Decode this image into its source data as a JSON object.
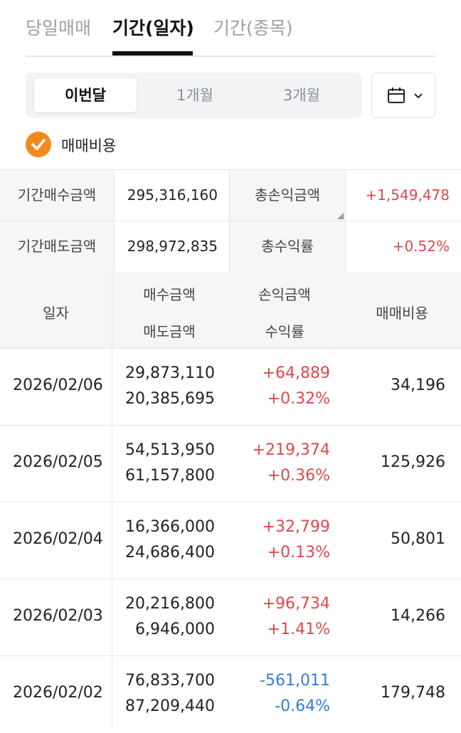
{
  "tabs": [
    {
      "label": "당일매매",
      "active": false
    },
    {
      "label": "기간(일자)",
      "active": true
    },
    {
      "label": "기간(종목)",
      "active": false
    }
  ],
  "period_filter": {
    "options": [
      "이번달",
      "1개월",
      "3개월"
    ],
    "selected": "이번달"
  },
  "calendar_button": {
    "icon": "calendar-icon",
    "dropdown_icon": "chevron-down-icon"
  },
  "fee_checkbox": {
    "label": "매매비용",
    "checked": true,
    "color": "#f2891f"
  },
  "summary": {
    "buy_label": "기간매수금액",
    "buy_value": "295,316,160",
    "sell_label": "기간매도금액",
    "sell_value": "298,972,835",
    "pl_label": "총손익금액",
    "pl_value": "+1,549,478",
    "rate_label": "총수익률",
    "rate_value": "+0.52%"
  },
  "table": {
    "headers": {
      "date": "일자",
      "buy": "매수금액",
      "sell": "매도금액",
      "pl": "손익금액",
      "rate": "수익률",
      "fee": "매매비용"
    },
    "rows": [
      {
        "date": "2026/02/06",
        "buy": "29,873,110",
        "sell": "20,385,695",
        "pl": "+64,889",
        "rate": "+0.32%",
        "fee": "34,196",
        "positive": true
      },
      {
        "date": "2026/02/05",
        "buy": "54,513,950",
        "sell": "61,157,800",
        "pl": "+219,374",
        "rate": "+0.36%",
        "fee": "125,926",
        "positive": true
      },
      {
        "date": "2026/02/04",
        "buy": "16,366,000",
        "sell": "24,686,400",
        "pl": "+32,799",
        "rate": "+0.13%",
        "fee": "50,801",
        "positive": true
      },
      {
        "date": "2026/02/03",
        "buy": "20,216,800",
        "sell": "6,946,000",
        "pl": "+96,734",
        "rate": "+1.41%",
        "fee": "14,266",
        "positive": true
      },
      {
        "date": "2026/02/02",
        "buy": "76,833,700",
        "sell": "87,209,440",
        "pl": "-561,011",
        "rate": "-0.64%",
        "fee": "179,748",
        "positive": false
      }
    ]
  },
  "colors": {
    "positive": "#e0474b",
    "negative": "#2f7fd6",
    "accent": "#f2891f"
  }
}
